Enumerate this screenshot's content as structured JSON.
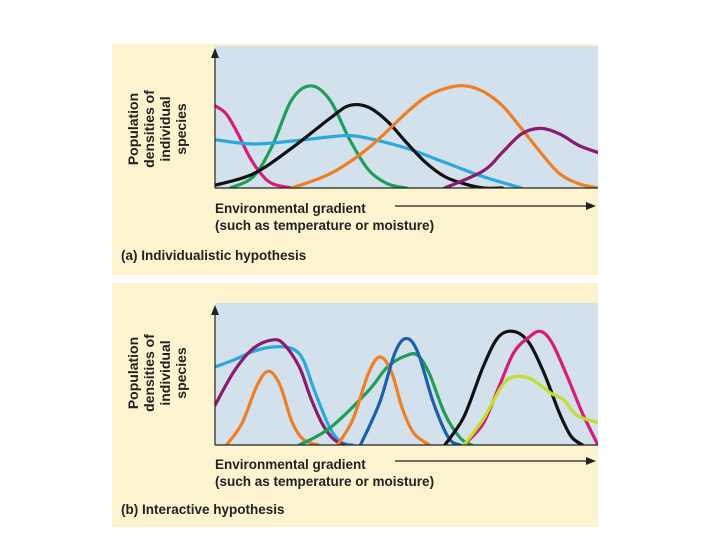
{
  "chart_data": [
    {
      "type": "line",
      "panel_label": "(a)",
      "title": "Individualistic hypothesis",
      "ylabel_lines": [
        "Population",
        "densities of",
        "individual",
        "species"
      ],
      "xlabel_lines": [
        "Environmental gradient",
        "(such as temperature or moisture)"
      ],
      "xlim": [
        0,
        100
      ],
      "ylim": [
        0,
        100
      ],
      "grid": false,
      "series": [
        {
          "name": "magenta",
          "color": "#d81b7a",
          "x": [
            0,
            3,
            6,
            9,
            12,
            15,
            20
          ],
          "y": [
            58,
            52,
            38,
            22,
            10,
            3,
            0
          ]
        },
        {
          "name": "green",
          "color": "#1f9e5a",
          "x": [
            4,
            10,
            15,
            20,
            25,
            30,
            35,
            40,
            45,
            50
          ],
          "y": [
            0,
            8,
            30,
            62,
            72,
            62,
            35,
            13,
            3,
            0
          ]
        },
        {
          "name": "light blue",
          "color": "#2aa8e0",
          "x": [
            0,
            10,
            20,
            30,
            35,
            40,
            50,
            60,
            70,
            80
          ],
          "y": [
            34,
            31,
            33,
            36,
            37,
            35,
            28,
            18,
            8,
            0
          ]
        },
        {
          "name": "black",
          "color": "#111111",
          "x": [
            0,
            10,
            20,
            30,
            35,
            40,
            45,
            50,
            55,
            60,
            65,
            70,
            75
          ],
          "y": [
            2,
            10,
            28,
            49,
            58,
            57,
            47,
            32,
            18,
            8,
            3,
            0,
            0
          ]
        },
        {
          "name": "orange",
          "color": "#ee7f22",
          "x": [
            20,
            30,
            40,
            50,
            55,
            60,
            65,
            70,
            75,
            80,
            85,
            90,
            95,
            100
          ],
          "y": [
            0,
            10,
            28,
            53,
            64,
            70,
            72,
            68,
            58,
            42,
            25,
            10,
            3,
            0
          ]
        },
        {
          "name": "purple",
          "color": "#8c1a6e",
          "x": [
            60,
            70,
            75,
            80,
            85,
            90,
            95,
            100
          ],
          "y": [
            0,
            12,
            25,
            38,
            42,
            38,
            30,
            25
          ]
        }
      ]
    },
    {
      "type": "line",
      "panel_label": "(b)",
      "title": "Interactive hypothesis",
      "ylabel_lines": [
        "Population",
        "densities of",
        "individual",
        "species"
      ],
      "xlabel_lines": [
        "Environmental gradient",
        "(such as temperature or moisture)"
      ],
      "xlim": [
        0,
        100
      ],
      "ylim": [
        0,
        100
      ],
      "grid": false,
      "series": [
        {
          "name": "light blue",
          "color": "#2aa8e0",
          "x": [
            0,
            5,
            10,
            15,
            20,
            23,
            26,
            30,
            33,
            36
          ],
          "y": [
            55,
            60,
            66,
            69,
            68,
            60,
            38,
            12,
            2,
            0
          ]
        },
        {
          "name": "purple",
          "color": "#8c1a6e",
          "x": [
            0,
            5,
            10,
            15,
            18,
            22,
            25,
            28,
            31,
            34
          ],
          "y": [
            28,
            52,
            68,
            74,
            71,
            55,
            33,
            15,
            4,
            0
          ]
        },
        {
          "name": "orange 1",
          "color": "#ee7f22",
          "x": [
            3,
            7,
            11,
            14,
            17,
            20,
            23,
            27
          ],
          "y": [
            0,
            15,
            42,
            52,
            42,
            17,
            4,
            0
          ]
        },
        {
          "name": "green",
          "color": "#1f9e5a",
          "x": [
            22,
            30,
            40,
            45,
            50,
            53,
            56,
            60,
            64,
            67
          ],
          "y": [
            0,
            12,
            38,
            55,
            63,
            63,
            50,
            22,
            5,
            0
          ]
        },
        {
          "name": "orange 2",
          "color": "#ee7f22",
          "x": [
            32,
            36,
            40,
            43,
            46,
            49,
            52,
            56
          ],
          "y": [
            0,
            18,
            50,
            62,
            52,
            25,
            8,
            0
          ]
        },
        {
          "name": "dark blue",
          "color": "#1d5fad",
          "x": [
            38,
            43,
            47,
            50,
            53,
            57,
            61,
            64
          ],
          "y": [
            0,
            30,
            65,
            75,
            65,
            30,
            5,
            0
          ]
        },
        {
          "name": "black",
          "color": "#111111",
          "x": [
            60,
            65,
            70,
            74,
            78,
            82,
            86,
            90,
            93,
            96
          ],
          "y": [
            0,
            20,
            55,
            76,
            80,
            72,
            50,
            22,
            6,
            0
          ]
        },
        {
          "name": "magenta",
          "color": "#d81b7a",
          "x": [
            65,
            70,
            74,
            78,
            82,
            85,
            88,
            92,
            96,
            100
          ],
          "y": [
            0,
            15,
            40,
            65,
            76,
            80,
            72,
            48,
            22,
            0
          ]
        },
        {
          "name": "yellow-green",
          "color": "#c4de2c",
          "x": [
            65,
            70,
            75,
            78,
            82,
            86,
            88,
            91,
            94,
            97,
            100
          ],
          "y": [
            0,
            18,
            42,
            48,
            47,
            40,
            36,
            32,
            22,
            18,
            16
          ]
        }
      ]
    }
  ]
}
